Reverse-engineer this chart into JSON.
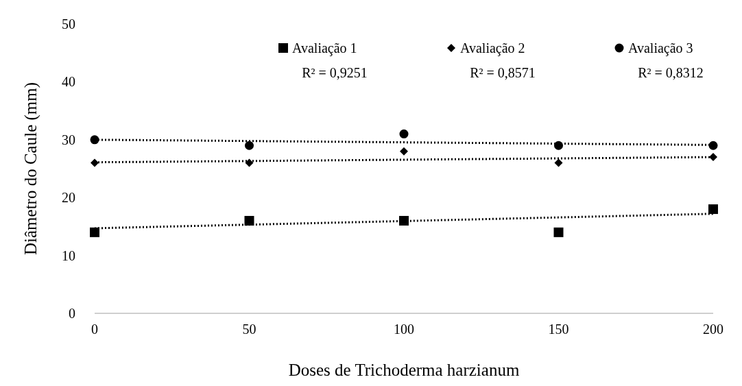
{
  "chart_data": {
    "type": "scatter",
    "xlabel": "Doses de Trichoderma harzianum",
    "ylabel": "Diâmetro do Caule (mm)",
    "xlim": [
      0,
      200
    ],
    "xticks": [
      0,
      50,
      100,
      150,
      200
    ],
    "ylim": [
      0,
      50
    ],
    "yticks": [
      0,
      10,
      20,
      30,
      40,
      50
    ],
    "grid": false,
    "legend": "top right",
    "annotations": [
      "R² = 0,9251",
      "R² = 0,8571",
      "R² = 0,8312"
    ],
    "series": [
      {
        "name": "Avaliação 1",
        "color": "#000000",
        "marker": "square",
        "x": [
          0,
          50,
          100,
          150,
          200
        ],
        "values": [
          14,
          16,
          16,
          14,
          18
        ]
      },
      {
        "name": "Avaliação 2",
        "color": "#000000",
        "marker": "diamond",
        "x": [
          0,
          50,
          100,
          150,
          200
        ],
        "values": [
          26,
          26,
          28,
          26,
          27
        ]
      },
      {
        "name": "Avaliação 3",
        "color": "#000000",
        "marker": "circle",
        "x": [
          0,
          50,
          100,
          150,
          200
        ],
        "values": [
          30,
          29,
          31,
          29,
          29
        ]
      },
      {
        "type": "line",
        "color": "#000000",
        "marker": "none",
        "line_style": "dotted",
        "x": [
          0,
          200
        ],
        "values": [
          14.7,
          17.2
        ]
      },
      {
        "type": "line",
        "color": "#000000",
        "marker": "none",
        "line_style": "dotted",
        "x": [
          0,
          200
        ],
        "values": [
          26.1,
          27
        ]
      },
      {
        "type": "line",
        "color": "#000000",
        "marker": "none",
        "line_style": "dotted",
        "x": [
          0,
          200
        ],
        "values": [
          30,
          29.1
        ]
      }
    ]
  }
}
